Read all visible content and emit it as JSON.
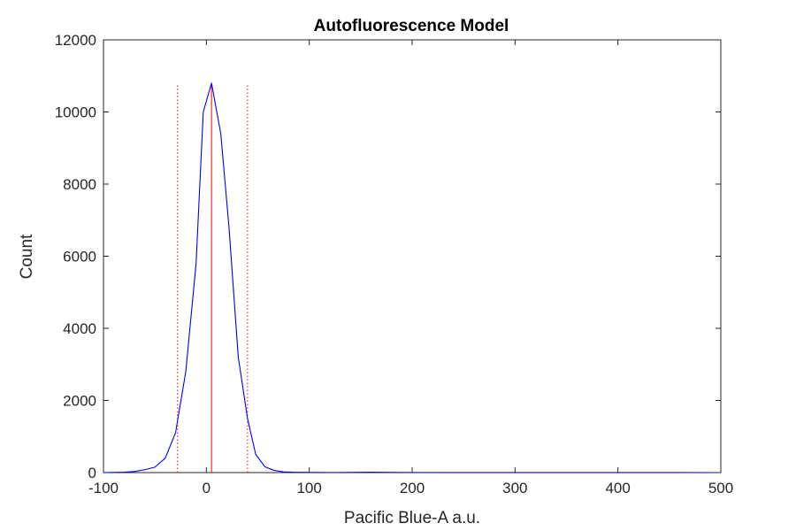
{
  "chart_data": {
    "type": "line",
    "title": "Autofluorescence Model",
    "xlabel": "Pacific Blue-A a.u.",
    "ylabel": "Count",
    "xlim": [
      -100,
      500
    ],
    "ylim": [
      0,
      12000
    ],
    "xticks": [
      -100,
      0,
      100,
      200,
      300,
      400,
      500
    ],
    "yticks": [
      0,
      2000,
      4000,
      6000,
      8000,
      10000,
      12000
    ],
    "grid": false,
    "series": [
      {
        "color": "#0000ff",
        "x": [
          -100,
          -90,
          -80,
          -70,
          -60,
          -50,
          -40,
          -30,
          -20,
          -10,
          -3,
          5,
          14,
          22,
          31,
          40,
          48,
          57,
          66,
          75,
          84,
          100,
          120,
          140,
          160,
          180,
          200,
          250,
          300,
          350,
          400,
          450,
          495
        ],
        "y": [
          0,
          5,
          10,
          30,
          80,
          150,
          400,
          1100,
          2800,
          5800,
          10000,
          10800,
          9400,
          6800,
          3200,
          1500,
          500,
          160,
          60,
          20,
          10,
          5,
          3,
          4,
          10,
          5,
          3,
          2,
          2,
          1,
          1,
          1,
          0
        ]
      }
    ],
    "vertical_lines": [
      {
        "x": 5,
        "y_top": 10750,
        "style": "solid",
        "color": "#ff0000"
      },
      {
        "x": -28,
        "y_top": 10750,
        "style": "dotted",
        "color": "#ff0000"
      },
      {
        "x": 40,
        "y_top": 10750,
        "style": "dotted",
        "color": "#ff0000"
      }
    ]
  }
}
